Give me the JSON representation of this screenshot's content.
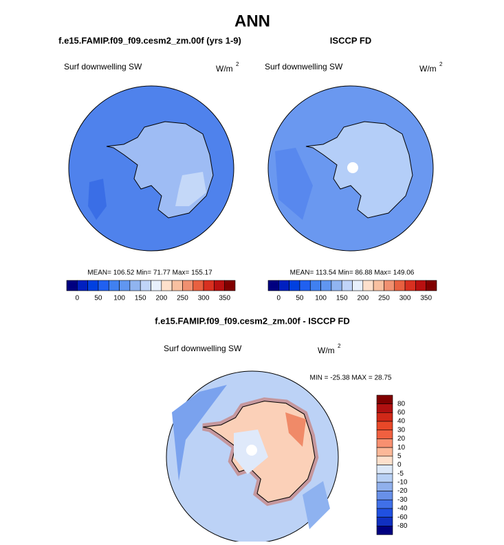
{
  "title": "ANN",
  "panels": [
    {
      "title": "f.e15.FAMIP.f09_f09.cesm2_zm.00f (yrs 1-9)",
      "field": "Surf downwelling SW",
      "units": "W/m",
      "units_exponent": "2",
      "stats": "MEAN= 106.52  Min=  71.77  Max= 155.17",
      "colorbar_labels": [
        0,
        50,
        100,
        150,
        200,
        250,
        300,
        350
      ]
    },
    {
      "title": "ISCCP FD",
      "field": "Surf downwelling SW",
      "units": "W/m",
      "units_exponent": "2",
      "stats": "MEAN= 113.54  Min=  86.88  Max= 149.06",
      "colorbar_labels": [
        0,
        50,
        100,
        150,
        200,
        250,
        300,
        350
      ]
    },
    {
      "title": "f.e15.FAMIP.f09_f09.cesm2_zm.00f - ISCCP FD",
      "field": "Surf downwelling SW",
      "units": "W/m",
      "units_exponent": "2",
      "stats": "MIN = -25.38 MAX =  28.75",
      "colorbar_labels": [
        80,
        60,
        40,
        30,
        20,
        10,
        5,
        0,
        -5,
        -10,
        -20,
        -30,
        -40,
        -60,
        -80
      ]
    }
  ]
}
